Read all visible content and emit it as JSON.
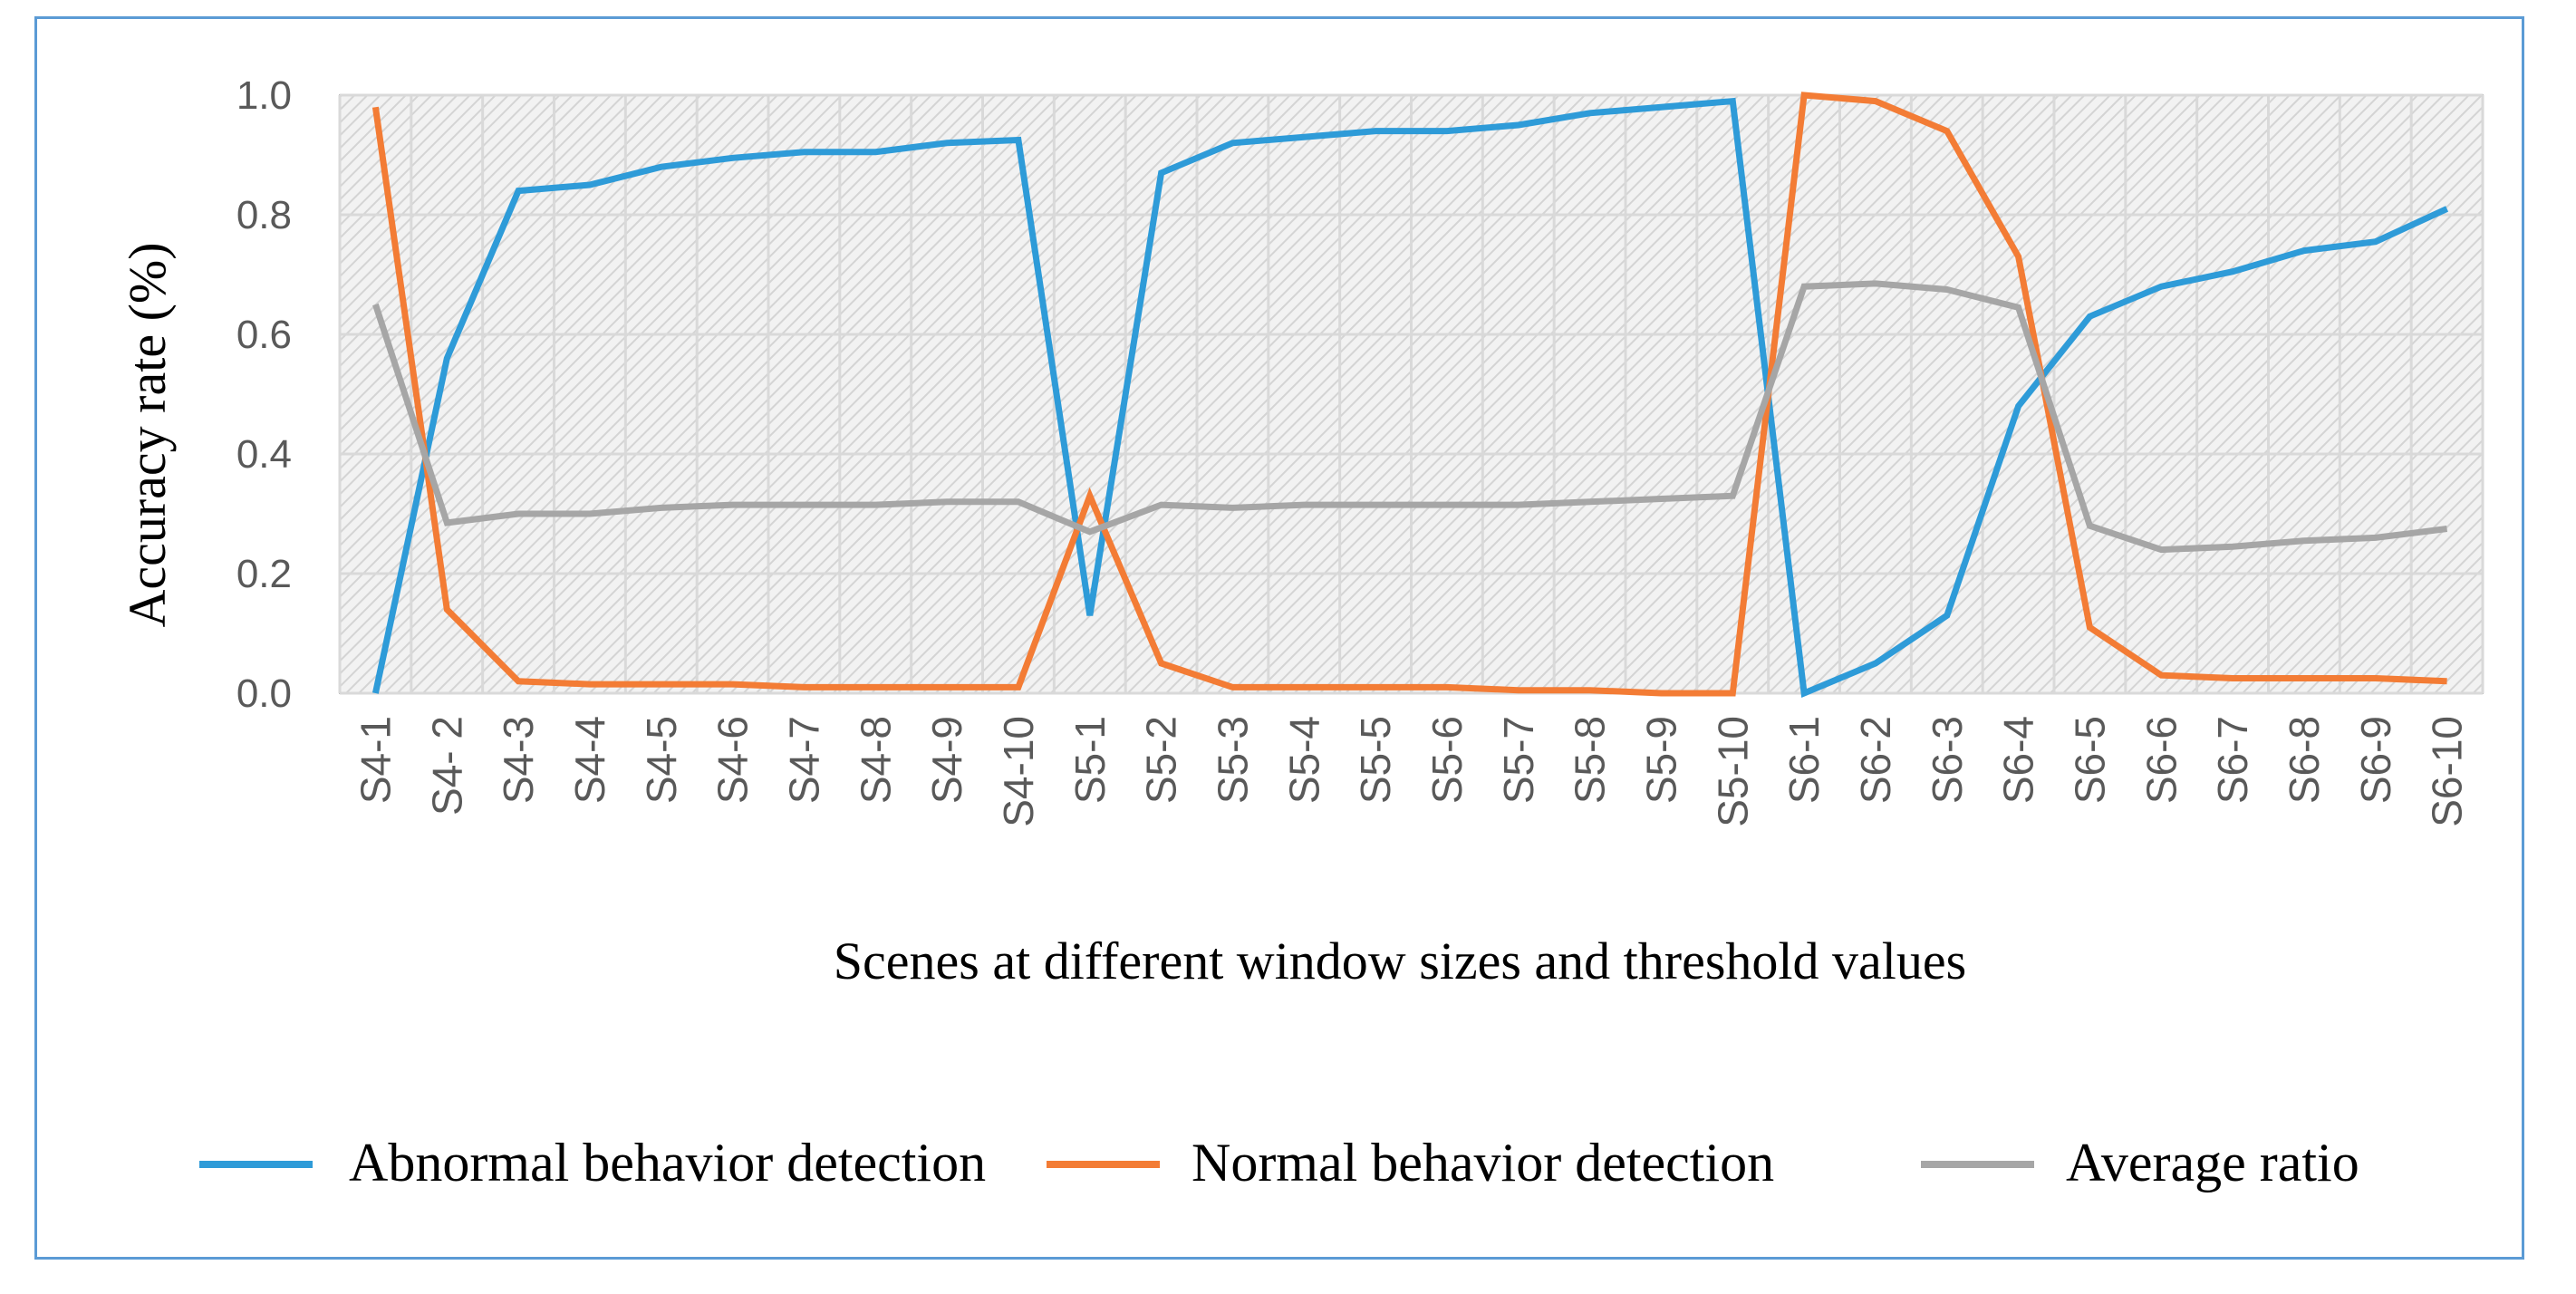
{
  "chart_data": {
    "type": "line",
    "title": "",
    "xlabel": "Scenes at different window sizes and threshold values",
    "ylabel": "Accuracy rate (%)",
    "ylim": [
      0,
      1.0
    ],
    "yticks": [
      "0.0",
      "0.2",
      "0.4",
      "0.6",
      "0.8",
      "1.0"
    ],
    "grid": true,
    "legend_position": "bottom",
    "categories": [
      "S4-1",
      "S4- 2",
      "S4-3",
      "S4-4",
      "S4-5",
      "S4-6",
      "S4-7",
      "S4-8",
      "S4-9",
      "S4-10",
      "S5-1",
      "S5-2",
      "S5-3",
      "S5-4",
      "S5-5",
      "S5-6",
      "S5-7",
      "S5-8",
      "S5-9",
      "S5-10",
      "S6-1",
      "S6-2",
      "S6-3",
      "S6-4",
      "S6-5",
      "S6-6",
      "S6-7",
      "S6-8",
      "S6-9",
      "S6-10"
    ],
    "series": [
      {
        "name": "Abnormal behavior detection",
        "color": "#2e9bd8",
        "values": [
          0.0,
          0.56,
          0.84,
          0.85,
          0.88,
          0.895,
          0.905,
          0.905,
          0.92,
          0.925,
          0.13,
          0.87,
          0.92,
          0.93,
          0.94,
          0.94,
          0.95,
          0.97,
          0.98,
          0.99,
          0.0,
          0.05,
          0.13,
          0.48,
          0.63,
          0.68,
          0.705,
          0.74,
          0.755,
          0.81
        ]
      },
      {
        "name": "Normal behavior detection",
        "color": "#f37c35",
        "values": [
          0.98,
          0.14,
          0.02,
          0.015,
          0.015,
          0.015,
          0.01,
          0.01,
          0.01,
          0.01,
          0.33,
          0.05,
          0.01,
          0.01,
          0.01,
          0.01,
          0.005,
          0.005,
          0.0,
          0.0,
          1.0,
          0.99,
          0.94,
          0.73,
          0.11,
          0.03,
          0.025,
          0.025,
          0.025,
          0.02
        ]
      },
      {
        "name": "Average ratio",
        "color": "#a6a6a6",
        "values": [
          0.65,
          0.285,
          0.3,
          0.3,
          0.31,
          0.315,
          0.315,
          0.315,
          0.32,
          0.32,
          0.27,
          0.315,
          0.31,
          0.315,
          0.315,
          0.315,
          0.315,
          0.32,
          0.325,
          0.33,
          0.68,
          0.685,
          0.675,
          0.645,
          0.28,
          0.24,
          0.245,
          0.255,
          0.26,
          0.275
        ]
      }
    ]
  }
}
